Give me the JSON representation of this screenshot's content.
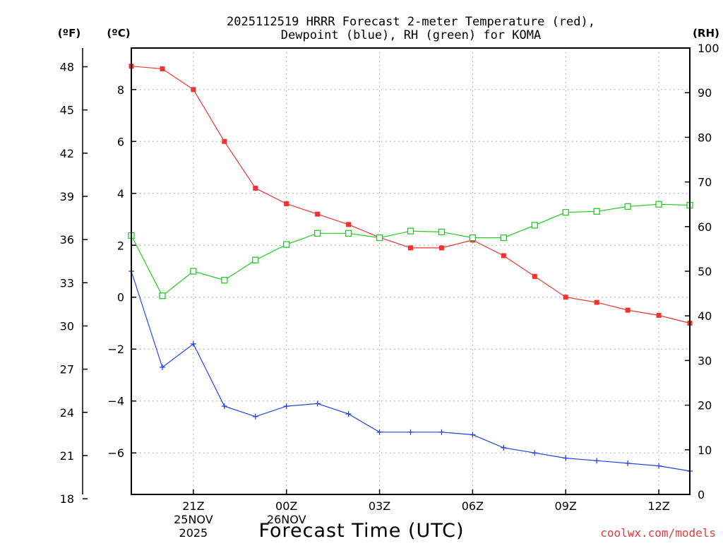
{
  "chart_data": {
    "type": "line",
    "title_lines": [
      "2025112519 HRRR Forecast 2-meter Temperature (red),",
      "Dewpoint (blue), RH (green) for KOMA"
    ],
    "xlabel": "Forecast Time (UTC)",
    "credit": "coolwx.com/models",
    "units": {
      "fahrenheit": "(ºF)",
      "celsius": "(ºC)",
      "rh": "(RH)"
    },
    "x_hours": [
      19,
      20,
      21,
      22,
      23,
      24,
      25,
      26,
      27,
      28,
      29,
      30,
      31,
      32,
      33,
      34,
      35,
      36,
      37
    ],
    "xlim": [
      19,
      37
    ],
    "x_ticks": [
      {
        "hour": 21,
        "lines": [
          "21Z",
          "25NOV",
          "2025"
        ]
      },
      {
        "hour": 24,
        "lines": [
          "00Z",
          "26NOV"
        ]
      },
      {
        "hour": 27,
        "lines": [
          "03Z"
        ]
      },
      {
        "hour": 30,
        "lines": [
          "06Z"
        ]
      },
      {
        "hour": 33,
        "lines": [
          "09Z"
        ]
      },
      {
        "hour": 36,
        "lines": [
          "12Z"
        ]
      }
    ],
    "celsius_axis": {
      "ylim": [
        -7.6,
        9.6
      ],
      "ticks": [
        "8",
        "6",
        "4",
        "2",
        "0",
        "−2",
        "−4",
        "−6"
      ],
      "tick_values": [
        8,
        6,
        4,
        2,
        0,
        -2,
        -4,
        -6
      ]
    },
    "fahrenheit_axis": {
      "ylim": [
        18.3,
        49.3
      ],
      "ticks": [
        "48",
        "45",
        "42",
        "39",
        "36",
        "33",
        "30",
        "27",
        "24",
        "21",
        "18"
      ],
      "tick_values": [
        48,
        45,
        42,
        39,
        36,
        33,
        30,
        27,
        24,
        21,
        18
      ]
    },
    "rh_axis": {
      "ylim": [
        0,
        100
      ],
      "ticks": [
        "100",
        "90",
        "80",
        "70",
        "60",
        "50",
        "40",
        "30",
        "20",
        "10",
        "0"
      ],
      "tick_values": [
        100,
        90,
        80,
        70,
        60,
        50,
        40,
        30,
        20,
        10,
        0
      ]
    },
    "series": [
      {
        "name": "2-meter Temperature",
        "axis": "celsius",
        "color": "#ee3333",
        "marker": "filled-square",
        "values": [
          8.9,
          8.8,
          8.0,
          6.0,
          4.2,
          3.6,
          3.2,
          2.8,
          2.3,
          1.9,
          1.9,
          2.2,
          1.6,
          0.8,
          0.0,
          -0.2,
          -0.5,
          -0.7,
          -1.0
        ]
      },
      {
        "name": "Dewpoint",
        "axis": "celsius",
        "color": "#2244ee",
        "marker": "plus",
        "values": [
          1.0,
          -2.7,
          -1.8,
          -4.2,
          -4.6,
          -4.2,
          -4.1,
          -4.5,
          -5.2,
          -5.2,
          -5.2,
          -5.3,
          -5.8,
          -6.0,
          -6.2,
          -6.3,
          -6.4,
          -6.5,
          -6.7
        ]
      },
      {
        "name": "RH",
        "axis": "rh",
        "color": "#22cc22",
        "marker": "open-square",
        "values": [
          58,
          44.5,
          50,
          48,
          52.5,
          56,
          58.5,
          58.5,
          57.5,
          59,
          58.8,
          57.5,
          57.5,
          60.3,
          63.2,
          63.4,
          64.5,
          65,
          64.8
        ]
      }
    ]
  }
}
